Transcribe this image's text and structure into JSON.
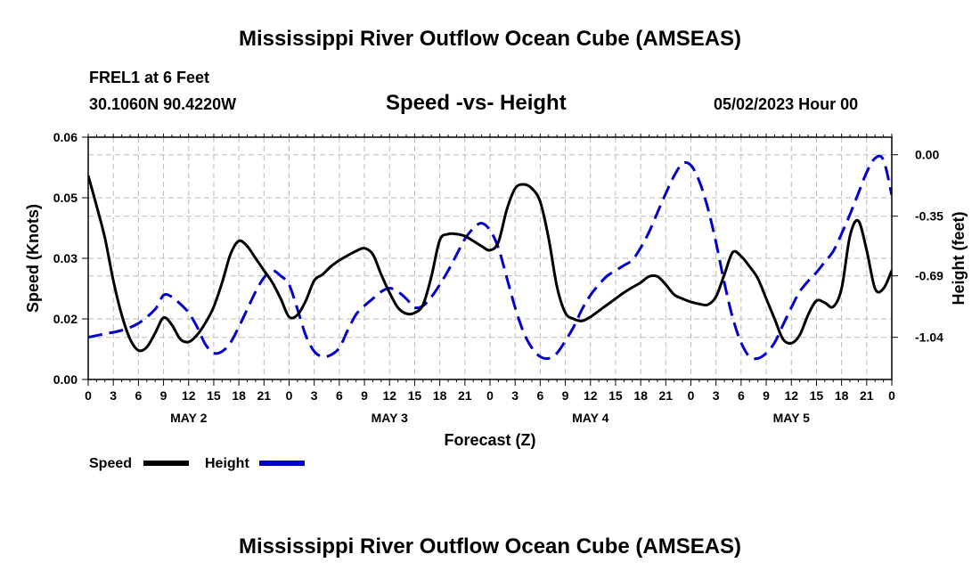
{
  "header": {
    "title": "Mississippi River Outflow Ocean Cube (AMSEAS)",
    "station": "FREL1 at 6 Feet",
    "coords": "30.1060N  90.4220W",
    "plot_title": "Speed -vs- Height",
    "date": "05/02/2023 Hour 00"
  },
  "footer": {
    "title": "Mississippi River Outflow Ocean Cube (AMSEAS)"
  },
  "chart_data": {
    "type": "line",
    "title": "Speed -vs- Height",
    "xlabel": "Forecast (Z)",
    "ylabel": "Speed (Knots)",
    "y2label": "Height (feet)",
    "xlim": [
      0,
      96
    ],
    "ylim": [
      0.0,
      0.06
    ],
    "y2lim": [
      -1.28,
      0.1
    ],
    "grid": true,
    "x_tick_values": [
      0,
      3,
      6,
      9,
      12,
      15,
      18,
      21,
      24,
      27,
      30,
      33,
      36,
      39,
      42,
      45,
      48,
      51,
      54,
      57,
      60,
      63,
      66,
      69,
      72,
      75,
      78,
      81,
      84,
      87,
      90,
      93,
      96
    ],
    "x_tick_labels": [
      "0",
      "3",
      "6",
      "9",
      "12",
      "15",
      "18",
      "21",
      "0",
      "3",
      "6",
      "9",
      "12",
      "15",
      "18",
      "21",
      "0",
      "3",
      "6",
      "9",
      "12",
      "15",
      "18",
      "21",
      "0",
      "3",
      "6",
      "9",
      "12",
      "15",
      "18",
      "21",
      "0"
    ],
    "day_labels": [
      {
        "label": "MAY 2",
        "x": 12
      },
      {
        "label": "MAY 3",
        "x": 36
      },
      {
        "label": "MAY 4",
        "x": 60
      },
      {
        "label": "MAY 5",
        "x": 84
      }
    ],
    "y_ticks": [
      {
        "value": 0.0,
        "label": "0.00"
      },
      {
        "value": 0.015,
        "label": "0.02"
      },
      {
        "value": 0.03,
        "label": "0.03"
      },
      {
        "value": 0.045,
        "label": "0.05"
      },
      {
        "value": 0.06,
        "label": "0.06"
      }
    ],
    "y2_ticks": [
      {
        "value": 0.0,
        "label": "0.00"
      },
      {
        "value": -0.35,
        "label": "-0.35"
      },
      {
        "value": -0.69,
        "label": "-0.69"
      },
      {
        "value": -1.04,
        "label": "-1.04"
      }
    ],
    "series": [
      {
        "name": "Speed",
        "axis": "left",
        "color": "#000000",
        "dash": "solid",
        "points": [
          [
            0,
            0.0505
          ],
          [
            1,
            0.043
          ],
          [
            2,
            0.035
          ],
          [
            3,
            0.0245
          ],
          [
            4,
            0.016
          ],
          [
            5,
            0.01
          ],
          [
            6,
            0.0072
          ],
          [
            7,
            0.008
          ],
          [
            8,
            0.0115
          ],
          [
            9,
            0.0153
          ],
          [
            10,
            0.0135
          ],
          [
            11,
            0.01
          ],
          [
            12,
            0.0093
          ],
          [
            13,
            0.011
          ],
          [
            14,
            0.014
          ],
          [
            15,
            0.018
          ],
          [
            16,
            0.024
          ],
          [
            17,
            0.031
          ],
          [
            18,
            0.0343
          ],
          [
            19,
            0.033
          ],
          [
            20,
            0.03
          ],
          [
            21,
            0.027
          ],
          [
            22,
            0.024
          ],
          [
            23,
            0.02
          ],
          [
            24,
            0.0155
          ],
          [
            25,
            0.016
          ],
          [
            26,
            0.0195
          ],
          [
            27,
            0.0245
          ],
          [
            28,
            0.026
          ],
          [
            29,
            0.028
          ],
          [
            30,
            0.0295
          ],
          [
            31,
            0.0307
          ],
          [
            32,
            0.0318
          ],
          [
            33,
            0.0325
          ],
          [
            34,
            0.031
          ],
          [
            35,
            0.026
          ],
          [
            36,
            0.0215
          ],
          [
            37,
            0.0178
          ],
          [
            38,
            0.0163
          ],
          [
            39,
            0.0165
          ],
          [
            40,
            0.0185
          ],
          [
            41,
            0.0255
          ],
          [
            42,
            0.0345
          ],
          [
            43,
            0.036
          ],
          [
            44,
            0.036
          ],
          [
            45,
            0.0355
          ],
          [
            46,
            0.0343
          ],
          [
            47,
            0.033
          ],
          [
            48,
            0.032
          ],
          [
            49,
            0.034
          ],
          [
            50,
            0.042
          ],
          [
            51,
            0.0473
          ],
          [
            52,
            0.0483
          ],
          [
            53,
            0.0473
          ],
          [
            54,
            0.044
          ],
          [
            55,
            0.035
          ],
          [
            56,
            0.023
          ],
          [
            57,
            0.0165
          ],
          [
            58,
            0.015
          ],
          [
            59,
            0.0145
          ],
          [
            60,
            0.0155
          ],
          [
            61,
            0.017
          ],
          [
            62,
            0.0185
          ],
          [
            63,
            0.02
          ],
          [
            64,
            0.0215
          ],
          [
            65,
            0.0228
          ],
          [
            66,
            0.024
          ],
          [
            67,
            0.0255
          ],
          [
            68,
            0.0255
          ],
          [
            69,
            0.0235
          ],
          [
            70,
            0.021
          ],
          [
            71,
            0.02
          ],
          [
            72,
            0.0192
          ],
          [
            73,
            0.0187
          ],
          [
            74,
            0.0185
          ],
          [
            75,
            0.0205
          ],
          [
            76,
            0.026
          ],
          [
            77,
            0.0315
          ],
          [
            78,
            0.0305
          ],
          [
            79,
            0.028
          ],
          [
            80,
            0.025
          ],
          [
            81,
            0.02
          ],
          [
            82,
            0.015
          ],
          [
            83,
            0.01
          ],
          [
            84,
            0.009
          ],
          [
            85,
            0.011
          ],
          [
            86,
            0.016
          ],
          [
            87,
            0.0195
          ],
          [
            88,
            0.019
          ],
          [
            89,
            0.018
          ],
          [
            90,
            0.0225
          ],
          [
            91,
            0.0355
          ],
          [
            92,
            0.0393
          ],
          [
            93,
            0.032
          ],
          [
            94,
            0.0225
          ],
          [
            95,
            0.0225
          ],
          [
            96,
            0.027
          ]
        ]
      },
      {
        "name": "Height",
        "axis": "right",
        "color": "#0000cc",
        "dash": "dashed",
        "points": [
          [
            0,
            -1.04
          ],
          [
            2,
            -1.02
          ],
          [
            4,
            -1.0
          ],
          [
            6,
            -0.96
          ],
          [
            8,
            -0.88
          ],
          [
            9,
            -0.8
          ],
          [
            10,
            -0.81
          ],
          [
            11,
            -0.85
          ],
          [
            12,
            -0.9
          ],
          [
            13,
            -0.98
          ],
          [
            14,
            -1.08
          ],
          [
            15,
            -1.13
          ],
          [
            16,
            -1.12
          ],
          [
            17,
            -1.07
          ],
          [
            18,
            -0.98
          ],
          [
            19,
            -0.88
          ],
          [
            20,
            -0.78
          ],
          [
            21,
            -0.7
          ],
          [
            22,
            -0.66
          ],
          [
            23,
            -0.69
          ],
          [
            24,
            -0.74
          ],
          [
            25,
            -0.88
          ],
          [
            26,
            -1.03
          ],
          [
            27,
            -1.12
          ],
          [
            28,
            -1.15
          ],
          [
            29,
            -1.14
          ],
          [
            30,
            -1.1
          ],
          [
            31,
            -1.0
          ],
          [
            32,
            -0.91
          ],
          [
            33,
            -0.86
          ],
          [
            34,
            -0.82
          ],
          [
            35,
            -0.78
          ],
          [
            36,
            -0.76
          ],
          [
            37,
            -0.78
          ],
          [
            38,
            -0.82
          ],
          [
            39,
            -0.87
          ],
          [
            40,
            -0.86
          ],
          [
            41,
            -0.81
          ],
          [
            42,
            -0.74
          ],
          [
            43,
            -0.66
          ],
          [
            44,
            -0.57
          ],
          [
            45,
            -0.48
          ],
          [
            46,
            -0.42
          ],
          [
            47,
            -0.39
          ],
          [
            48,
            -0.43
          ],
          [
            49,
            -0.53
          ],
          [
            50,
            -0.7
          ],
          [
            51,
            -0.87
          ],
          [
            52,
            -1.01
          ],
          [
            53,
            -1.1
          ],
          [
            54,
            -1.15
          ],
          [
            55,
            -1.16
          ],
          [
            56,
            -1.13
          ],
          [
            57,
            -1.06
          ],
          [
            58,
            -0.98
          ],
          [
            59,
            -0.88
          ],
          [
            60,
            -0.8
          ],
          [
            61,
            -0.74
          ],
          [
            62,
            -0.69
          ],
          [
            63,
            -0.66
          ],
          [
            64,
            -0.63
          ],
          [
            65,
            -0.6
          ],
          [
            66,
            -0.53
          ],
          [
            67,
            -0.44
          ],
          [
            68,
            -0.33
          ],
          [
            69,
            -0.22
          ],
          [
            70,
            -0.12
          ],
          [
            71,
            -0.05
          ],
          [
            72,
            -0.06
          ],
          [
            73,
            -0.15
          ],
          [
            74,
            -0.3
          ],
          [
            75,
            -0.5
          ],
          [
            76,
            -0.73
          ],
          [
            77,
            -0.93
          ],
          [
            78,
            -1.07
          ],
          [
            79,
            -1.15
          ],
          [
            80,
            -1.16
          ],
          [
            81,
            -1.13
          ],
          [
            82,
            -1.07
          ],
          [
            83,
            -0.97
          ],
          [
            84,
            -0.87
          ],
          [
            85,
            -0.78
          ],
          [
            86,
            -0.72
          ],
          [
            87,
            -0.67
          ],
          [
            88,
            -0.61
          ],
          [
            89,
            -0.55
          ],
          [
            90,
            -0.45
          ],
          [
            91,
            -0.34
          ],
          [
            92,
            -0.22
          ],
          [
            93,
            -0.1
          ],
          [
            94,
            -0.02
          ],
          [
            95,
            -0.03
          ],
          [
            96,
            -0.23
          ]
        ]
      }
    ],
    "legend": [
      {
        "label": "Speed",
        "color": "#000000",
        "dash": "solid"
      },
      {
        "label": "Height",
        "color": "#0000cc",
        "dash": "dashed"
      }
    ]
  }
}
